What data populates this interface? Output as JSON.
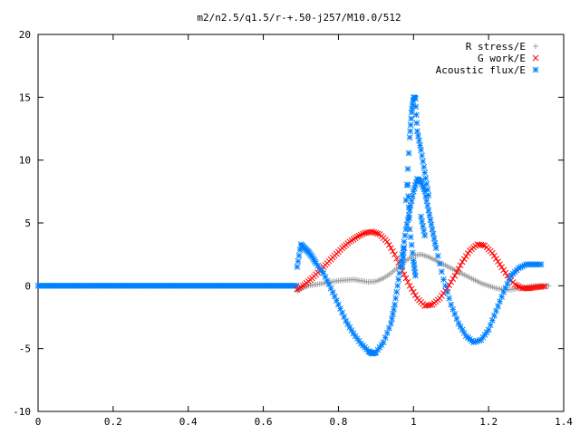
{
  "chart_data": {
    "type": "scatter",
    "title": "m2/n2.5/q1.5/r-+.50-j257/M10.0/512",
    "xlabel": "",
    "ylabel": "",
    "xlim": [
      0,
      1.4
    ],
    "ylim": [
      -10,
      20
    ],
    "xticks": [
      "0",
      "0.2",
      "0.4",
      "0.6",
      "0.8",
      "1",
      "1.2",
      "1.4"
    ],
    "yticks": [
      "-10",
      "-5",
      "0",
      "5",
      "10",
      "15",
      "20"
    ],
    "grid": false,
    "legend_position": "top-right",
    "series": [
      {
        "name": "R stress/E",
        "marker": "plus",
        "color": "#a0a0a0",
        "points": [
          [
            0.69,
            -0.4
          ],
          [
            0.7,
            -0.2
          ],
          [
            0.72,
            0.0
          ],
          [
            0.74,
            0.1
          ],
          [
            0.76,
            0.2
          ],
          [
            0.78,
            0.3
          ],
          [
            0.8,
            0.4
          ],
          [
            0.82,
            0.45
          ],
          [
            0.84,
            0.5
          ],
          [
            0.86,
            0.4
          ],
          [
            0.88,
            0.3
          ],
          [
            0.9,
            0.35
          ],
          [
            0.92,
            0.6
          ],
          [
            0.94,
            1.0
          ],
          [
            0.96,
            1.5
          ],
          [
            0.98,
            2.0
          ],
          [
            1.0,
            2.4
          ],
          [
            1.02,
            2.5
          ],
          [
            1.04,
            2.3
          ],
          [
            1.06,
            2.0
          ],
          [
            1.08,
            1.7
          ],
          [
            1.1,
            1.4
          ],
          [
            1.12,
            1.1
          ],
          [
            1.14,
            0.8
          ],
          [
            1.16,
            0.5
          ],
          [
            1.18,
            0.2
          ],
          [
            1.2,
            0.0
          ],
          [
            1.22,
            -0.2
          ],
          [
            1.24,
            -0.3
          ],
          [
            1.26,
            -0.3
          ],
          [
            1.28,
            -0.2
          ],
          [
            1.3,
            -0.1
          ],
          [
            1.32,
            0.0
          ],
          [
            1.34,
            0.0
          ],
          [
            1.36,
            0.0
          ]
        ]
      },
      {
        "name": "G work/E",
        "marker": "cross",
        "color": "#ff0000",
        "points": [
          [
            0.69,
            -0.3
          ],
          [
            0.71,
            0.1
          ],
          [
            0.73,
            0.6
          ],
          [
            0.75,
            1.2
          ],
          [
            0.77,
            1.8
          ],
          [
            0.79,
            2.4
          ],
          [
            0.81,
            3.0
          ],
          [
            0.83,
            3.5
          ],
          [
            0.85,
            3.9
          ],
          [
            0.87,
            4.2
          ],
          [
            0.89,
            4.3
          ],
          [
            0.91,
            4.1
          ],
          [
            0.93,
            3.5
          ],
          [
            0.95,
            2.5
          ],
          [
            0.97,
            1.2
          ],
          [
            0.99,
            0.0
          ],
          [
            1.01,
            -1.0
          ],
          [
            1.03,
            -1.6
          ],
          [
            1.05,
            -1.5
          ],
          [
            1.07,
            -1.0
          ],
          [
            1.09,
            -0.2
          ],
          [
            1.11,
            0.8
          ],
          [
            1.13,
            1.9
          ],
          [
            1.15,
            2.8
          ],
          [
            1.17,
            3.3
          ],
          [
            1.19,
            3.2
          ],
          [
            1.21,
            2.6
          ],
          [
            1.23,
            1.7
          ],
          [
            1.25,
            0.8
          ],
          [
            1.27,
            0.1
          ],
          [
            1.29,
            -0.2
          ],
          [
            1.31,
            -0.2
          ],
          [
            1.33,
            -0.1
          ],
          [
            1.35,
            -0.05
          ]
        ]
      },
      {
        "name": "Acoustic flux/E",
        "marker": "star",
        "color": "#0080ff",
        "points": [
          [
            0.69,
            1.5
          ],
          [
            0.7,
            3.3
          ],
          [
            0.71,
            3.0
          ],
          [
            0.72,
            2.7
          ],
          [
            0.73,
            2.3
          ],
          [
            0.74,
            1.8
          ],
          [
            0.76,
            1.0
          ],
          [
            0.78,
            -0.2
          ],
          [
            0.8,
            -1.5
          ],
          [
            0.82,
            -2.8
          ],
          [
            0.84,
            -3.8
          ],
          [
            0.86,
            -4.6
          ],
          [
            0.88,
            -5.2
          ],
          [
            0.89,
            -5.4
          ],
          [
            0.9,
            -5.3
          ],
          [
            0.92,
            -4.5
          ],
          [
            0.94,
            -3.0
          ],
          [
            0.95,
            -1.5
          ],
          [
            0.96,
            0.5
          ],
          [
            0.97,
            2.5
          ],
          [
            0.98,
            4.5
          ],
          [
            0.99,
            6.0
          ],
          [
            1.0,
            7.5
          ],
          [
            1.01,
            8.5
          ],
          [
            1.02,
            8.3
          ],
          [
            1.03,
            7.5
          ],
          [
            1.04,
            6.0
          ],
          [
            1.05,
            4.5
          ],
          [
            1.06,
            3.0
          ],
          [
            1.08,
            0.5
          ],
          [
            1.1,
            -1.5
          ],
          [
            1.12,
            -3.0
          ],
          [
            1.14,
            -4.0
          ],
          [
            1.16,
            -4.5
          ],
          [
            1.18,
            -4.3
          ],
          [
            1.2,
            -3.5
          ],
          [
            1.22,
            -2.0
          ],
          [
            1.24,
            -0.5
          ],
          [
            1.26,
            0.8
          ],
          [
            1.28,
            1.4
          ],
          [
            1.3,
            1.7
          ],
          [
            1.32,
            1.7
          ],
          [
            1.34,
            1.7
          ],
          [
            0.98,
            6.8
          ],
          [
            0.99,
            11.8
          ],
          [
            0.995,
            13.8
          ],
          [
            1.0,
            15.0
          ],
          [
            1.005,
            14.9
          ],
          [
            1.01,
            12.3
          ],
          [
            1.02,
            10.8
          ],
          [
            1.03,
            9.0
          ],
          [
            1.04,
            7.2
          ],
          [
            0.985,
            8.0
          ],
          [
            0.99,
            4.5
          ],
          [
            1.0,
            2.0
          ],
          [
            1.005,
            0.8
          ],
          [
            0.97,
            1.5
          ],
          [
            0.975,
            3.0
          ],
          [
            1.02,
            5.5
          ],
          [
            1.03,
            4.0
          ]
        ]
      }
    ],
    "baseline": {
      "x_start": 0.0,
      "x_end": 0.69,
      "y": 0.0,
      "x_tail_start": 1.36,
      "x_tail_end": 1.36
    }
  }
}
